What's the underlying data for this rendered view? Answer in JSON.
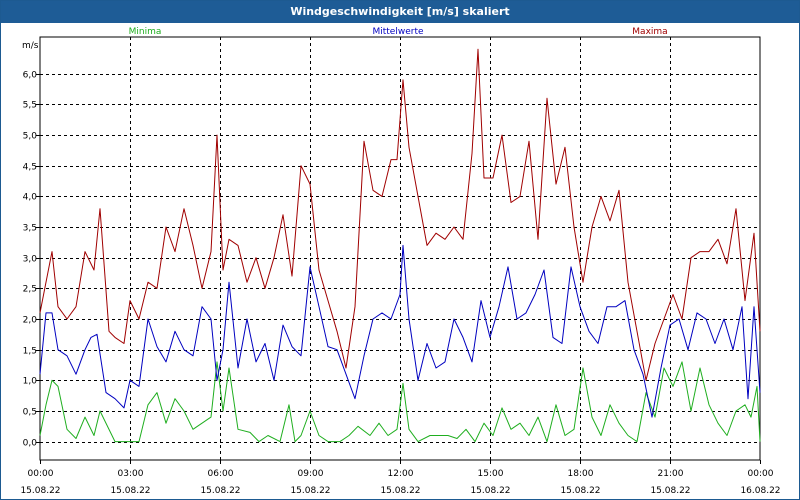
{
  "title": "Windgeschwindigkeit [m/s] skaliert",
  "colors": {
    "min": "#1fae1f",
    "avg": "#0000c0",
    "max": "#a00000",
    "title_bg": "#1e5c96"
  },
  "chart_data": {
    "type": "line",
    "title": "Windgeschwindigkeit [m/s] skaliert",
    "ylabel": "m/s",
    "ylim": [
      -0.3,
      6.6
    ],
    "y_ticks": [
      "0,0",
      "0,5",
      "1,0",
      "1,5",
      "2,0",
      "2,5",
      "3,0",
      "3,5",
      "4,0",
      "4,5",
      "5,0",
      "5,5",
      "6,0"
    ],
    "y_tick_values": [
      0,
      0.5,
      1,
      1.5,
      2,
      2.5,
      3,
      3.5,
      4,
      4.5,
      5,
      5.5,
      6
    ],
    "x_ticks": [
      {
        "time": "00:00",
        "date": "15.08.22"
      },
      {
        "time": "03:00",
        "date": "15.08.22"
      },
      {
        "time": "06:00",
        "date": "15.08.22"
      },
      {
        "time": "09:00",
        "date": "15.08.22"
      },
      {
        "time": "12:00",
        "date": "15.08.22"
      },
      {
        "time": "15:00",
        "date": "15.08.22"
      },
      {
        "time": "18:00",
        "date": "15.08.22"
      },
      {
        "time": "21:00",
        "date": "15.08.22"
      },
      {
        "time": "00:00",
        "date": "16.08.22"
      }
    ],
    "xlim_hours": [
      0,
      24
    ],
    "grid": true,
    "legend_position": "top",
    "series": [
      {
        "name": "Minima",
        "color": "#1fae1f",
        "x": [
          0,
          0.2,
          0.4,
          0.6,
          0.9,
          1.2,
          1.5,
          1.8,
          2.0,
          2.5,
          3.0,
          3.3,
          3.6,
          3.9,
          4.2,
          4.5,
          4.8,
          5.1,
          5.4,
          5.7,
          5.9,
          6.1,
          6.3,
          6.6,
          7.0,
          7.3,
          7.6,
          8.0,
          8.3,
          8.5,
          8.7,
          9.0,
          9.3,
          9.6,
          10.0,
          10.3,
          10.6,
          11.0,
          11.3,
          11.6,
          11.9,
          12.1,
          12.3,
          12.6,
          13.0,
          13.3,
          13.6,
          13.9,
          14.2,
          14.5,
          14.8,
          15.1,
          15.4,
          15.7,
          16.0,
          16.3,
          16.6,
          16.9,
          17.2,
          17.5,
          17.8,
          18.1,
          18.4,
          18.7,
          19.0,
          19.3,
          19.6,
          19.9,
          20.2,
          20.5,
          20.8,
          21.1,
          21.4,
          21.7,
          22.0,
          22.3,
          22.6,
          22.9,
          23.2,
          23.5,
          23.7,
          23.9,
          24.0
        ],
        "values": [
          0.1,
          0.6,
          1.0,
          0.9,
          0.2,
          0.05,
          0.4,
          0.1,
          0.5,
          0.0,
          0.0,
          0.0,
          0.6,
          0.8,
          0.3,
          0.7,
          0.5,
          0.2,
          0.3,
          0.4,
          1.3,
          0.5,
          1.2,
          0.2,
          0.15,
          0.0,
          0.1,
          0.0,
          0.6,
          0.0,
          0.1,
          0.5,
          0.1,
          0.0,
          0.0,
          0.1,
          0.25,
          0.1,
          0.3,
          0.1,
          0.2,
          0.95,
          0.2,
          0.0,
          0.1,
          0.1,
          0.1,
          0.05,
          0.2,
          0.0,
          0.3,
          0.1,
          0.55,
          0.2,
          0.3,
          0.1,
          0.4,
          0.0,
          0.6,
          0.1,
          0.2,
          1.2,
          0.4,
          0.1,
          0.6,
          0.3,
          0.1,
          0.0,
          0.8,
          0.4,
          1.2,
          0.9,
          1.3,
          0.5,
          1.2,
          0.6,
          0.3,
          0.1,
          0.5,
          0.6,
          0.4,
          0.9,
          0.0
        ]
      },
      {
        "name": "Mittelwerte",
        "color": "#0000c0",
        "x": [
          0,
          0.2,
          0.4,
          0.6,
          0.9,
          1.2,
          1.5,
          1.7,
          1.9,
          2.2,
          2.5,
          2.8,
          3.0,
          3.3,
          3.6,
          3.9,
          4.2,
          4.5,
          4.8,
          5.1,
          5.4,
          5.7,
          5.9,
          6.1,
          6.3,
          6.6,
          6.9,
          7.2,
          7.5,
          7.8,
          8.1,
          8.4,
          8.7,
          9.0,
          9.3,
          9.6,
          9.9,
          10.2,
          10.5,
          10.8,
          11.1,
          11.4,
          11.7,
          12.0,
          12.1,
          12.3,
          12.6,
          12.9,
          13.2,
          13.5,
          13.8,
          14.1,
          14.4,
          14.7,
          15.0,
          15.3,
          15.6,
          15.9,
          16.2,
          16.5,
          16.8,
          17.1,
          17.4,
          17.7,
          18.0,
          18.3,
          18.6,
          18.9,
          19.2,
          19.5,
          19.8,
          20.1,
          20.4,
          20.7,
          21.0,
          21.3,
          21.6,
          21.9,
          22.2,
          22.5,
          22.8,
          23.1,
          23.4,
          23.6,
          23.8,
          24.0
        ],
        "values": [
          1.1,
          2.1,
          2.1,
          1.5,
          1.4,
          1.1,
          1.5,
          1.7,
          1.75,
          0.8,
          0.7,
          0.55,
          1.0,
          0.9,
          2.0,
          1.55,
          1.3,
          1.8,
          1.5,
          1.4,
          2.2,
          2.0,
          1.0,
          1.5,
          2.6,
          1.2,
          2.0,
          1.3,
          1.6,
          1.0,
          1.9,
          1.55,
          1.4,
          2.85,
          2.2,
          1.55,
          1.5,
          1.1,
          0.7,
          1.4,
          2.0,
          2.1,
          2.0,
          2.4,
          3.2,
          2.0,
          1.0,
          1.6,
          1.2,
          1.3,
          2.0,
          1.7,
          1.3,
          2.3,
          1.7,
          2.2,
          2.85,
          2.0,
          2.1,
          2.4,
          2.8,
          1.7,
          1.6,
          2.85,
          2.2,
          1.8,
          1.6,
          2.2,
          2.2,
          2.3,
          1.5,
          1.1,
          0.4,
          1.2,
          1.9,
          2.0,
          1.5,
          2.1,
          2.0,
          1.6,
          2.0,
          1.5,
          2.2,
          0.7,
          2.2,
          0.8
        ]
      },
      {
        "name": "Maxima",
        "color": "#a00000",
        "x": [
          0,
          0.2,
          0.4,
          0.6,
          0.9,
          1.2,
          1.5,
          1.8,
          2.0,
          2.3,
          2.5,
          2.8,
          3.0,
          3.3,
          3.6,
          3.9,
          4.2,
          4.5,
          4.8,
          5.1,
          5.4,
          5.7,
          5.9,
          6.1,
          6.3,
          6.6,
          6.9,
          7.2,
          7.5,
          7.8,
          8.1,
          8.4,
          8.7,
          9.0,
          9.3,
          9.6,
          9.9,
          10.2,
          10.5,
          10.8,
          11.1,
          11.4,
          11.7,
          11.9,
          12.1,
          12.3,
          12.6,
          12.9,
          13.2,
          13.5,
          13.8,
          14.1,
          14.4,
          14.6,
          14.8,
          15.1,
          15.4,
          15.7,
          16.0,
          16.3,
          16.6,
          16.9,
          17.2,
          17.5,
          17.8,
          18.1,
          18.4,
          18.7,
          19.0,
          19.3,
          19.6,
          19.9,
          20.2,
          20.5,
          20.8,
          21.1,
          21.4,
          21.7,
          22.0,
          22.3,
          22.6,
          22.9,
          23.2,
          23.5,
          23.8,
          24.0
        ],
        "values": [
          2.1,
          2.6,
          3.1,
          2.2,
          2.0,
          2.2,
          3.1,
          2.8,
          3.8,
          1.8,
          1.7,
          1.6,
          2.3,
          2.0,
          2.6,
          2.5,
          3.5,
          3.1,
          3.8,
          3.2,
          2.5,
          3.1,
          5.0,
          2.8,
          3.3,
          3.2,
          2.6,
          3.0,
          2.5,
          3.0,
          3.7,
          2.7,
          4.5,
          4.2,
          2.8,
          2.3,
          1.8,
          1.2,
          2.2,
          4.9,
          4.1,
          4.0,
          4.6,
          4.6,
          5.9,
          4.8,
          4.0,
          3.2,
          3.4,
          3.3,
          3.5,
          3.3,
          4.7,
          6.4,
          4.3,
          4.3,
          5.0,
          3.9,
          4.0,
          4.9,
          3.3,
          5.6,
          4.2,
          4.8,
          3.5,
          2.6,
          3.5,
          4.0,
          3.6,
          4.1,
          2.6,
          1.8,
          1.0,
          1.6,
          2.0,
          2.4,
          2.0,
          3.0,
          3.1,
          3.1,
          3.3,
          2.9,
          3.8,
          2.3,
          3.4,
          1.8
        ]
      }
    ]
  }
}
